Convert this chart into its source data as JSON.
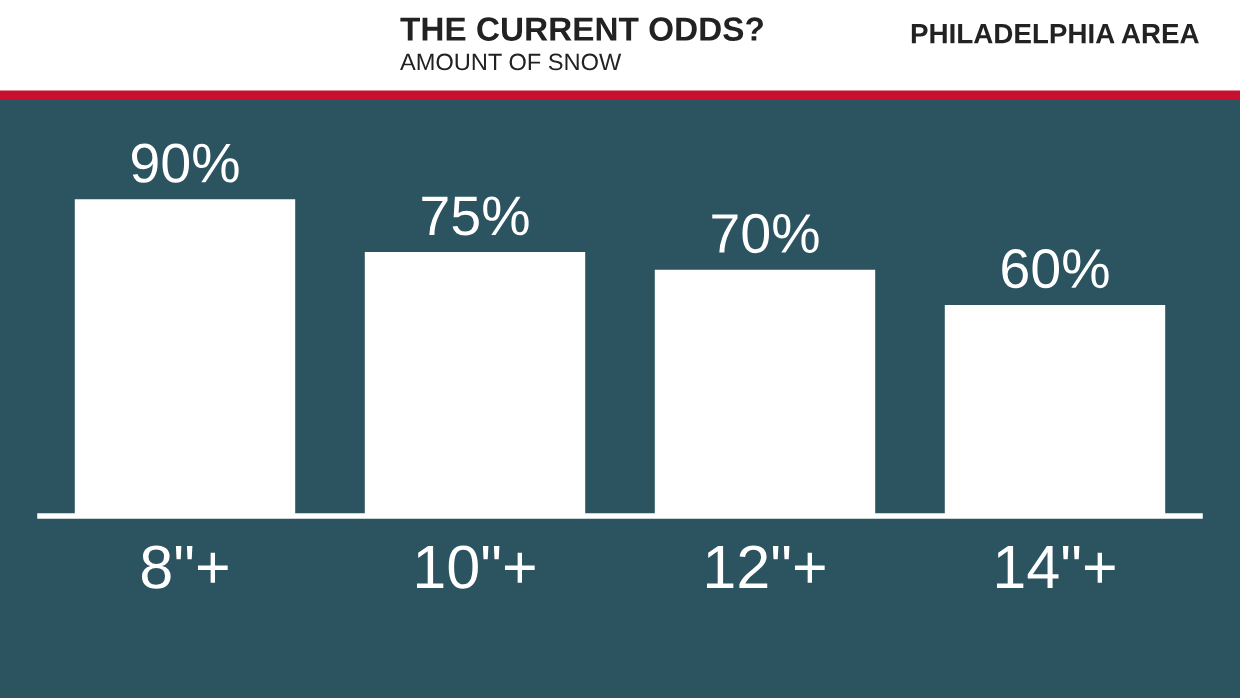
{
  "chart_data": {
    "type": "bar",
    "title": "THE CURRENT ODDS?",
    "subtitle": "AMOUNT OF SNOW",
    "annotations": [
      "PHILADELPHIA AREA"
    ],
    "categories": [
      "8\"+",
      "10\"+",
      "12\"+",
      "14\"+"
    ],
    "values": [
      90,
      75,
      70,
      60
    ],
    "value_labels": [
      "90%",
      "75%",
      "70%",
      "60%"
    ],
    "color": "#ffffff",
    "grid": false,
    "legend": false
  }
}
